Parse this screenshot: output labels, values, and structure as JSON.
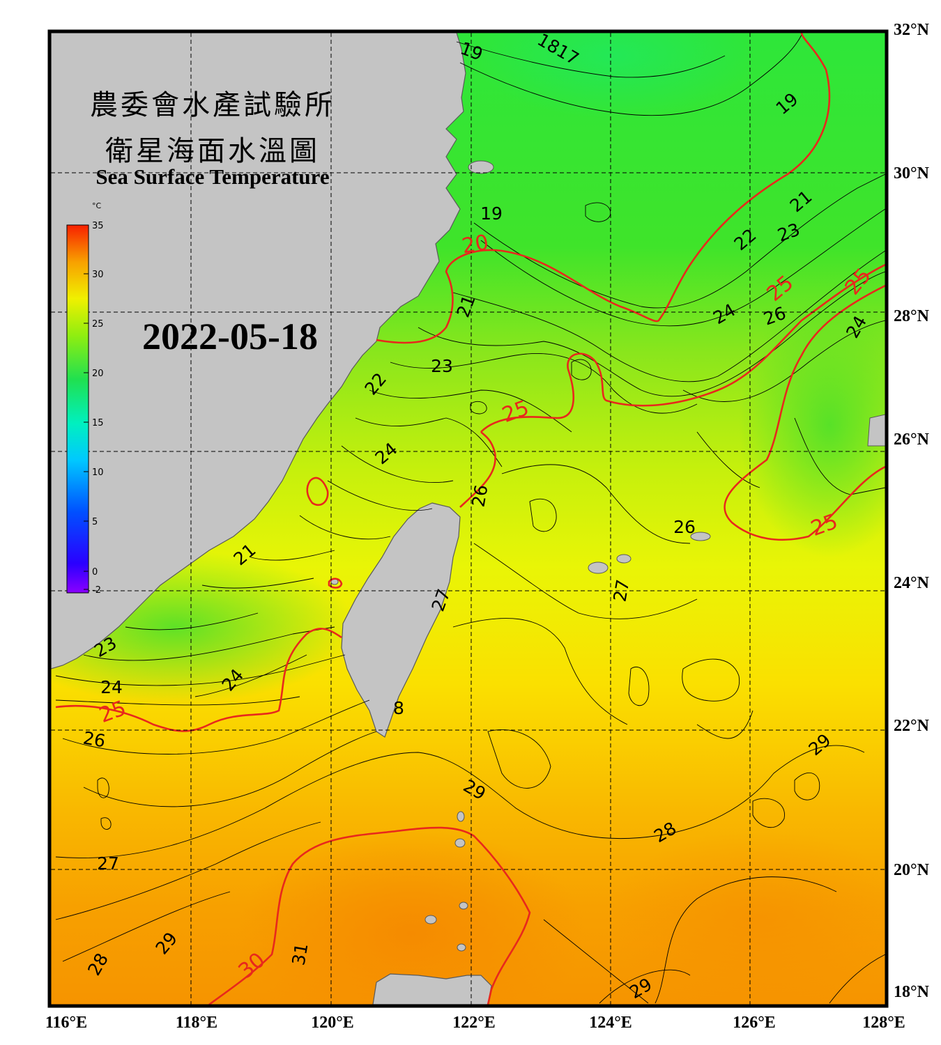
{
  "title": {
    "line1": "農委會水產試驗所",
    "line2": "衛星海面水溫圖",
    "english": "Sea Surface Temperature"
  },
  "date": "2022-05-18",
  "colorbar": {
    "unit": "°C",
    "ticks": [
      "35",
      "30",
      "25",
      "20",
      "15",
      "10",
      "5",
      "0",
      "-2"
    ]
  },
  "axes": {
    "longitude_labels": [
      "116°E",
      "118°E",
      "120°E",
      "122°E",
      "124°E",
      "126°E",
      "128°E"
    ],
    "latitude_labels": [
      "32°N",
      "30°N",
      "28°N",
      "26°N",
      "24°N",
      "22°N",
      "20°N",
      "18°N"
    ]
  },
  "contour_labels": [
    {
      "text": "19"
    },
    {
      "text": "1817"
    },
    {
      "text": "19"
    },
    {
      "text": "19"
    },
    {
      "text": "20",
      "emph": true
    },
    {
      "text": "21"
    },
    {
      "text": "22"
    },
    {
      "text": "23"
    },
    {
      "text": "21"
    },
    {
      "text": "22"
    },
    {
      "text": "23"
    },
    {
      "text": "25",
      "emph": true
    },
    {
      "text": "25",
      "emph": true
    },
    {
      "text": "24"
    },
    {
      "text": "26"
    },
    {
      "text": "24"
    },
    {
      "text": "25",
      "emph": true
    },
    {
      "text": "24"
    },
    {
      "text": "26"
    },
    {
      "text": "26"
    },
    {
      "text": "25",
      "emph": true
    },
    {
      "text": "21"
    },
    {
      "text": "27"
    },
    {
      "text": "27"
    },
    {
      "text": "23"
    },
    {
      "text": "24"
    },
    {
      "text": "24"
    },
    {
      "text": "25",
      "emph": true
    },
    {
      "text": "8"
    },
    {
      "text": "26"
    },
    {
      "text": "29"
    },
    {
      "text": "29"
    },
    {
      "text": "28"
    },
    {
      "text": "27"
    },
    {
      "text": "28"
    },
    {
      "text": "29"
    },
    {
      "text": "30",
      "emph": true
    },
    {
      "text": "31"
    },
    {
      "text": "29"
    }
  ],
  "colors": {
    "land": "#c4c4c4",
    "contour_emph": "#e8281c",
    "contour": "#000000"
  }
}
